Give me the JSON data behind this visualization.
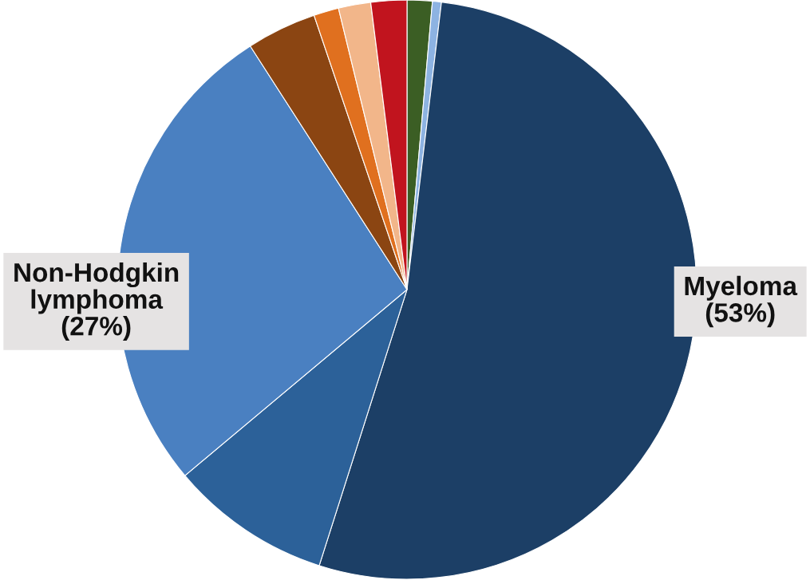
{
  "chart_data": {
    "type": "pie",
    "categories": [
      null,
      null,
      "Myeloma",
      null,
      "Non-Hodgkin lymphoma",
      null,
      null,
      null,
      null
    ],
    "values": [
      1.4,
      0.5,
      53,
      9,
      27,
      3.9,
      1.4,
      1.8,
      2.0
    ],
    "colors": [
      "#3b5e24",
      "#8db3e2",
      "#1c3f66",
      "#2c6199",
      "#4a80c1",
      "#8b4512",
      "#e0701f",
      "#f2b68a",
      "#c1141e"
    ],
    "value_labels": [
      null,
      null,
      "(53%)",
      null,
      "(27%)",
      null,
      null,
      null,
      null
    ]
  }
}
